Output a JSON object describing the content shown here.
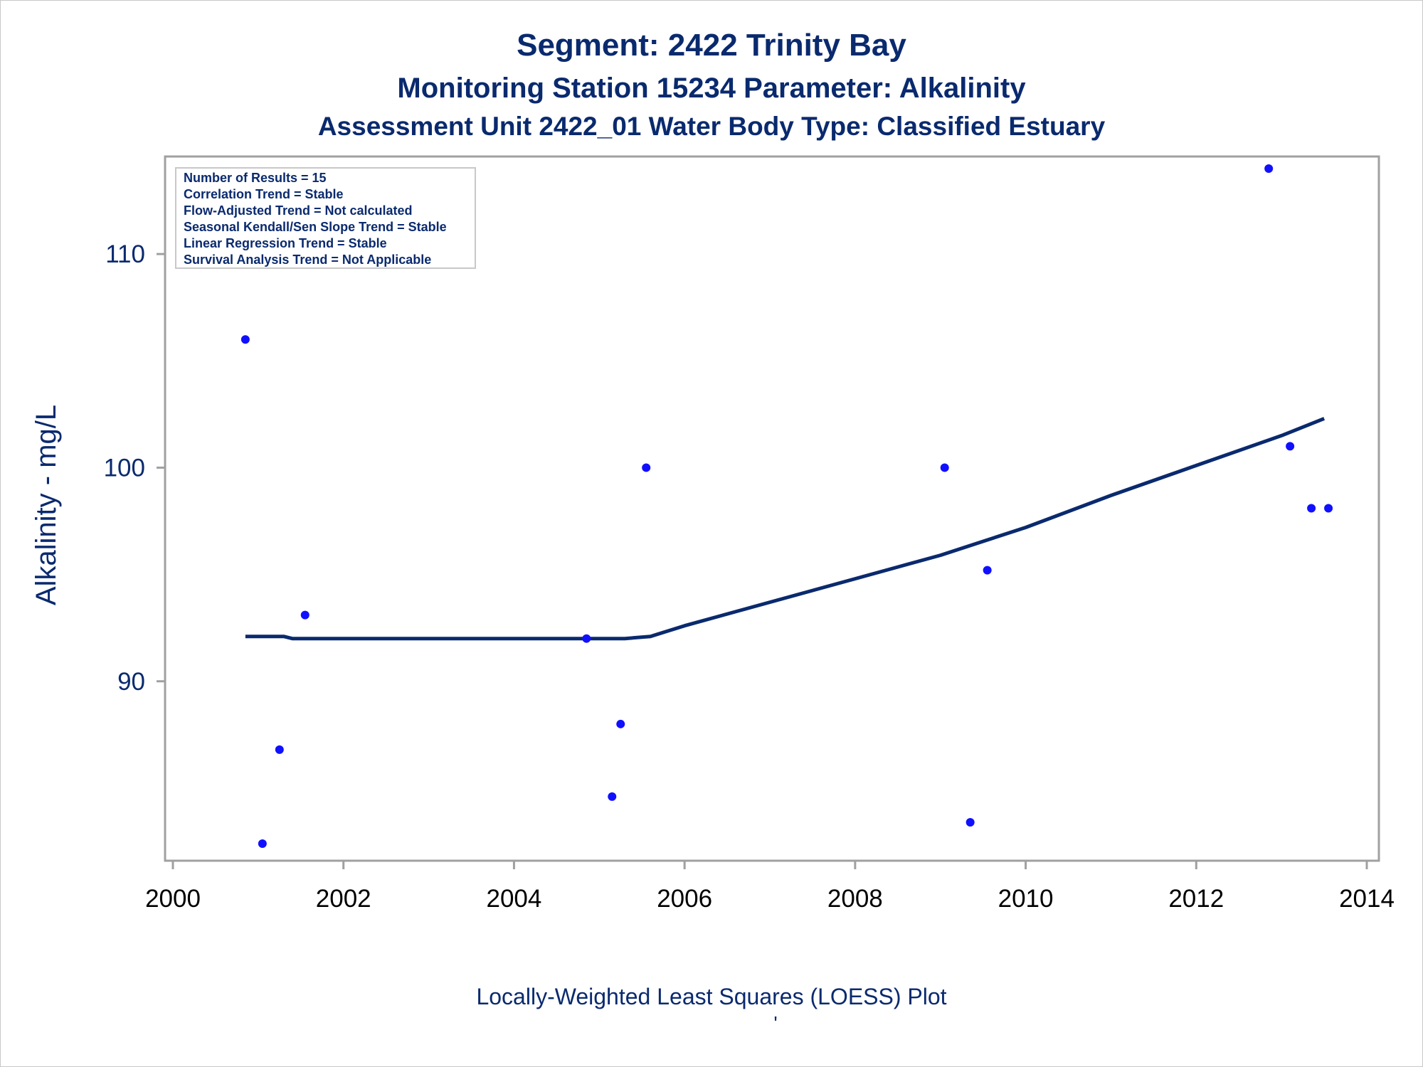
{
  "titles": {
    "line1": "Segment: 2422  Trinity Bay",
    "line2": "Monitoring Station 15234 Parameter: Alkalinity",
    "line3": "Assessment Unit 2422_01   Water Body Type: Classified Estuary"
  },
  "stats_box": [
    "Number of Results = 15",
    "Correlation Trend = Stable",
    "Flow-Adjusted Trend = Not calculated",
    "Seasonal Kendall/Sen Slope Trend = Stable",
    "Linear Regression Trend = Stable",
    "Survival Analysis Trend = Not Applicable"
  ],
  "footer": {
    "caption": "Locally-Weighted Least Squares (LOESS) Plot",
    "mark": "'"
  },
  "colors": {
    "text": "#0a2a6e",
    "points": "#1010ff",
    "loess_line": "#0a2a6e",
    "frame": "#a0a0a0"
  },
  "chart_data": {
    "type": "scatter",
    "xlabel": "",
    "ylabel": "Alkalinity - mg/L",
    "xlim": [
      2000,
      2014
    ],
    "ylim": [
      82,
      114
    ],
    "x_ticks": [
      2000,
      2002,
      2004,
      2006,
      2008,
      2010,
      2012,
      2014
    ],
    "y_ticks": [
      90,
      100,
      110
    ],
    "grid": false,
    "points": [
      {
        "x": 2000.85,
        "y": 106
      },
      {
        "x": 2001.05,
        "y": 82.4
      },
      {
        "x": 2001.25,
        "y": 86.8
      },
      {
        "x": 2001.55,
        "y": 93.1
      },
      {
        "x": 2004.85,
        "y": 92
      },
      {
        "x": 2005.15,
        "y": 84.6
      },
      {
        "x": 2005.25,
        "y": 88
      },
      {
        "x": 2005.55,
        "y": 100
      },
      {
        "x": 2009.05,
        "y": 100
      },
      {
        "x": 2009.35,
        "y": 83.4
      },
      {
        "x": 2009.55,
        "y": 95.2
      },
      {
        "x": 2012.85,
        "y": 114
      },
      {
        "x": 2013.1,
        "y": 101
      },
      {
        "x": 2013.35,
        "y": 98.1
      },
      {
        "x": 2013.55,
        "y": 98.1
      }
    ],
    "loess": [
      {
        "x": 2000.85,
        "y": 92.1
      },
      {
        "x": 2001.3,
        "y": 92.1
      },
      {
        "x": 2001.4,
        "y": 92
      },
      {
        "x": 2005.3,
        "y": 92
      },
      {
        "x": 2005.6,
        "y": 92.1
      },
      {
        "x": 2006.0,
        "y": 92.6
      },
      {
        "x": 2007.0,
        "y": 93.7
      },
      {
        "x": 2008.0,
        "y": 94.8
      },
      {
        "x": 2009.0,
        "y": 95.9
      },
      {
        "x": 2010.0,
        "y": 97.2
      },
      {
        "x": 2011.0,
        "y": 98.7
      },
      {
        "x": 2012.0,
        "y": 100.1
      },
      {
        "x": 2013.0,
        "y": 101.5
      },
      {
        "x": 2013.5,
        "y": 102.3
      }
    ]
  }
}
